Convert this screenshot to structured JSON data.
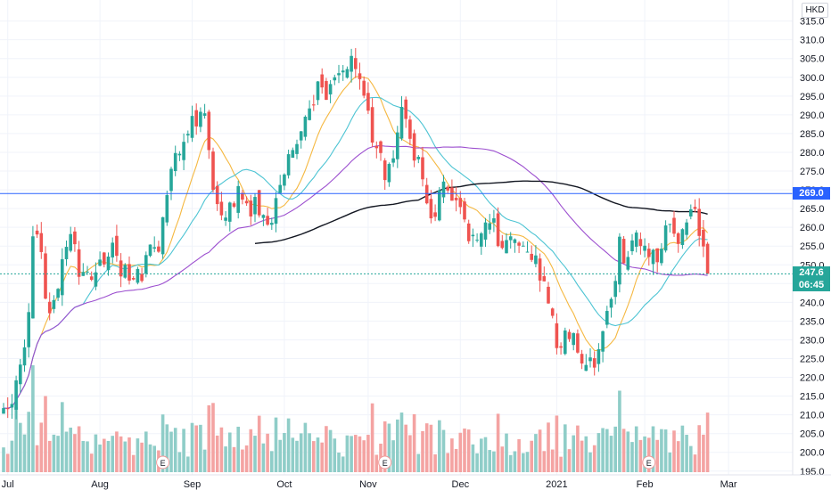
{
  "header": {
    "currency": "HKD"
  },
  "price_labels": {
    "level_line": "269.0",
    "last_price": "247.6",
    "countdown": "06:45"
  },
  "colors": {
    "up": "#26a69a",
    "down": "#ef5350",
    "up_volume": "#8fcdc8",
    "down_volume": "#f4a3a2",
    "ma_fast": "#f5b841",
    "ma_mid": "#4dc4d3",
    "ma_slow": "#9c4fcf",
    "ma_long": "#131722",
    "level_line": "#2962ff",
    "last_price": "#26a69a",
    "countdown": "#26a69a"
  },
  "chart_data": {
    "type": "candlestick",
    "currency": "HKD",
    "y_ticks": [
      195.0,
      200.0,
      205.0,
      210.0,
      215.0,
      220.0,
      225.0,
      230.0,
      235.0,
      240.0,
      245.0,
      250.0,
      255.0,
      260.0,
      265.0,
      270.0,
      275.0,
      280.0,
      285.0,
      290.0,
      295.0,
      300.0,
      305.0,
      310.0,
      315.0
    ],
    "ylim": [
      194,
      318
    ],
    "x_ticks": [
      {
        "label": "Jul",
        "index": 1
      },
      {
        "label": "Aug",
        "index": 23
      },
      {
        "label": "Sep",
        "index": 45
      },
      {
        "label": "Oct",
        "index": 67
      },
      {
        "label": "Nov",
        "index": 87
      },
      {
        "label": "Dec",
        "index": 109
      },
      {
        "label": "2021",
        "index": 132
      },
      {
        "label": "Feb",
        "index": 153
      },
      {
        "label": "Mar",
        "index": 173
      }
    ],
    "horizontal_level": 269.0,
    "last_price": 247.6,
    "earnings_markers": [
      {
        "label": "E",
        "index": 38
      },
      {
        "label": "E",
        "index": 91
      },
      {
        "label": "E",
        "index": 154
      }
    ],
    "candles": {
      "close": [
        211.8,
        211.7,
        212.9,
        219.2,
        223.4,
        228.0,
        237.4,
        257.6,
        258.1,
        253.4,
        241.0,
        237.1,
        240.6,
        243.6,
        251.5,
        254.8,
        258.2,
        255.5,
        246.8,
        248.1,
        248.2,
        246.0,
        248.0,
        251.4,
        250.1,
        252.2,
        255.9,
        252.4,
        246.9,
        250.0,
        245.8,
        246.1,
        248.9,
        245.7,
        252.6,
        255.4,
        254.7,
        253.5,
        262.7,
        268.6,
        275.6,
        279.8,
        279.6,
        282.8,
        284.9,
        289.7,
        286.9,
        290.8,
        290.4,
        280.6,
        270.0,
        266.2,
        263.2,
        262.6,
        266.6,
        265.5,
        271.0,
        267.4,
        266.4,
        262.9,
        268.1,
        263.2,
        263.3,
        260.7,
        261.2,
        267.8,
        271.3,
        274.1,
        279.5,
        280.6,
        282.2,
        285.6,
        289.5,
        291.7,
        292.5,
        298.9,
        297.3,
        294.0,
        298.2,
        300.0,
        301.1,
        301.8,
        302.2,
        305.7,
        302.2,
        299.5,
        295.1,
        291.1,
        282.6,
        281.1,
        279.8,
        272.6,
        276.9,
        278.4,
        285.3,
        292.1,
        288.9,
        283.6,
        277.8,
        278.8,
        272.8,
        266.4,
        262.4,
        262.8,
        269.9,
        272.2,
        269.8,
        267.1,
        267.2,
        265.4,
        262.1,
        256.3,
        258.0,
        256.7,
        258.4,
        261.3,
        261.1,
        262.4,
        255.0,
        254.5,
        256.6,
        257.6,
        256.8,
        255.1,
        255.1,
        253.5,
        251.3,
        252.5,
        245.8,
        245.6,
        239.7,
        236.4,
        227.8,
        227.9,
        232.5,
        230.2,
        231.8,
        226.6,
        223.7,
        223.3,
        225.3,
        222.6,
        227.5,
        232.3,
        237.7,
        240.9,
        245.7,
        257.5,
        250.4,
        252.1,
        256.5,
        258.6,
        255.0,
        255.1,
        252.1,
        254.0,
        250.7,
        254.3,
        260.5,
        260.9,
        258.3,
        255.6,
        259.5,
        261.3,
        264.8,
        264.9,
        257.7,
        254.9,
        247.6
      ]
    },
    "moving_averages": [
      {
        "color": "#f5b841"
      },
      {
        "color": "#4dc4d3"
      },
      {
        "color": "#9c4fcf"
      },
      {
        "color": "#131722"
      }
    ]
  }
}
